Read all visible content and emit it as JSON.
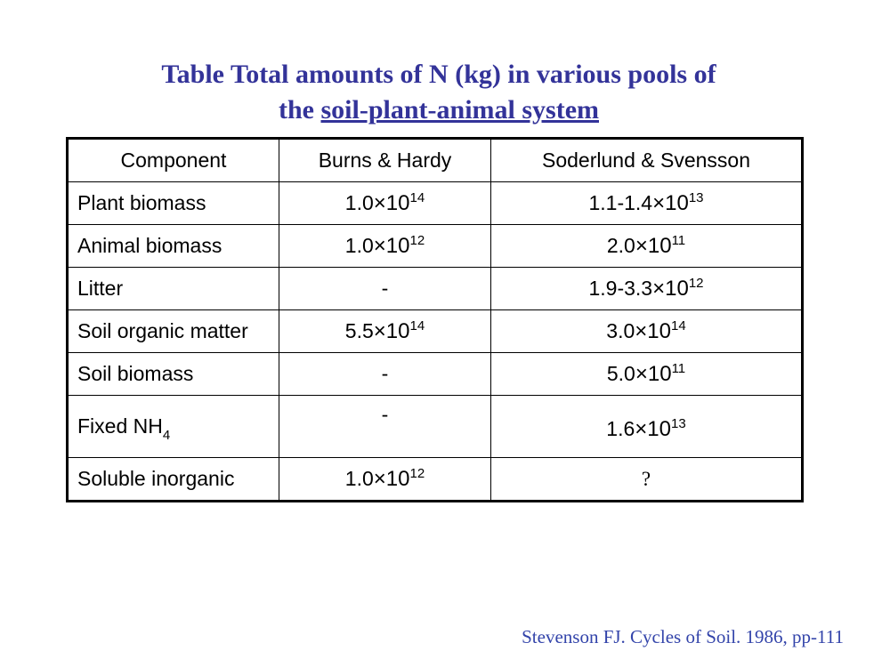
{
  "title": {
    "line1": "Table Total amounts of N (kg) in various pools of",
    "line2_prefix": "the ",
    "line2_underlined": "soil-plant-animal system"
  },
  "table": {
    "headers": [
      "Component",
      "Burns & Hardy",
      "Soderlund & Svensson"
    ],
    "rows": [
      {
        "component": "Plant biomass",
        "burns": {
          "mantissa": "1.0",
          "times": "×10",
          "exp": "14"
        },
        "soderlund": {
          "mantissa": "1.1-1.4",
          "times": "×10",
          "exp": "13"
        }
      },
      {
        "component": "Animal biomass",
        "burns": {
          "mantissa": "1.0",
          "times": "×10",
          "exp": "12"
        },
        "soderlund": {
          "mantissa": "2.0",
          "times": "×10",
          "exp": "11"
        }
      },
      {
        "component": "Litter",
        "burns": {
          "text": "-"
        },
        "soderlund": {
          "mantissa": "1.9-3.3",
          "times": "×10",
          "exp": "12"
        }
      },
      {
        "component": "Soil organic matter",
        "burns": {
          "mantissa": "5.5",
          "times": "×10",
          "exp": "14"
        },
        "soderlund": {
          "mantissa": "3.0",
          "times": "×10",
          "exp": "14"
        }
      },
      {
        "component": "Soil biomass",
        "burns": {
          "text": "-"
        },
        "soderlund": {
          "mantissa": "5.0",
          "times": "×10",
          "exp": "11"
        }
      },
      {
        "component": "Fixed NH",
        "component_sub": "4",
        "burns": {
          "text": "-"
        },
        "soderlund": {
          "mantissa": "1.6",
          "times": "×10",
          "exp": "13"
        }
      },
      {
        "component": "Soluble inorganic",
        "burns": {
          "mantissa": "1.0",
          "times": "×10",
          "exp": "12"
        },
        "soderlund": {
          "text": "?"
        }
      }
    ]
  },
  "citation": "Stevenson FJ. Cycles of Soil. 1986, pp-111"
}
